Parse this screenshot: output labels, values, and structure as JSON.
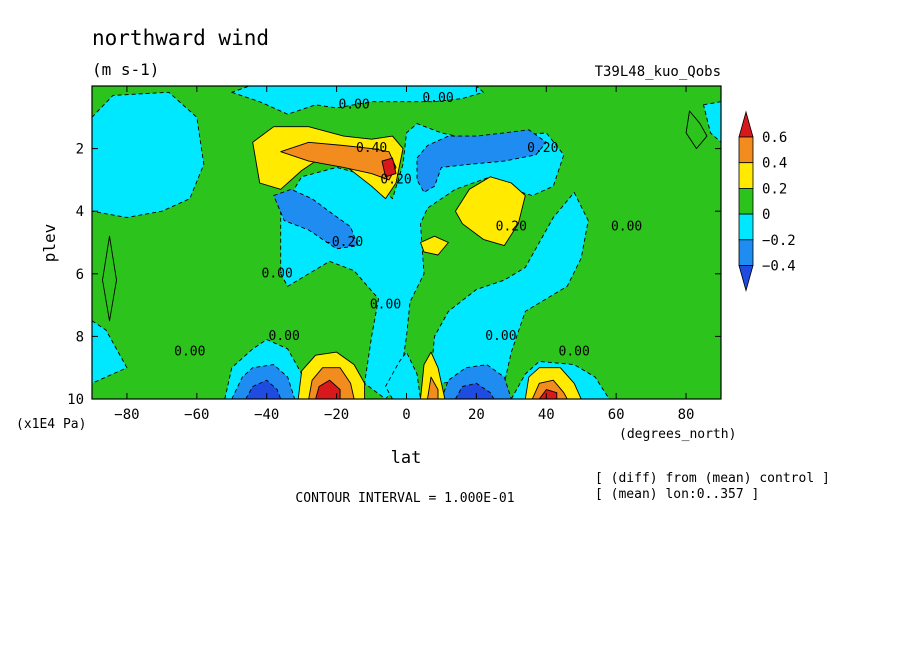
{
  "chart_data": {
    "type": "heatmap",
    "title": "northward wind",
    "units": "(m s-1)",
    "run_label": "T39L48_kuo_Qobs",
    "xlabel": "lat",
    "x_units": "(degrees_north)",
    "ylabel": "plev",
    "y_units": "(x1E4 Pa)",
    "xlim": [
      -90,
      90
    ],
    "ylim": [
      0,
      10
    ],
    "y_inverted": true,
    "x_ticks": [
      -80,
      -60,
      -40,
      -20,
      0,
      20,
      40,
      60,
      80
    ],
    "y_ticks": [
      2,
      4,
      6,
      8,
      10
    ],
    "contour_interval_text": "CONTOUR INTERVAL = 1.000E-01",
    "notes": [
      "[ (diff) from (mean) control ]",
      "[ (mean) lon:0..357 ]"
    ],
    "colorbar": {
      "tick_labels": [
        "0.6",
        "0.4",
        "0.2",
        "0",
        "-0.2",
        "-0.4"
      ],
      "colors": [
        "#d7191c",
        "#f28c1e",
        "#ffea00",
        "#2cc41c",
        "#00e8ff",
        "#1e8cf0",
        "#1e4be0"
      ]
    },
    "contour_labels": [
      {
        "text": "0.00",
        "lat": -15,
        "plev": 0.6
      },
      {
        "text": "0.00",
        "lat": 9,
        "plev": 0.4
      },
      {
        "text": "0.40",
        "lat": -10,
        "plev": 2.0
      },
      {
        "text": "0.20",
        "lat": -3,
        "plev": 3.0
      },
      {
        "text": "0.20",
        "lat": 39,
        "plev": 2.0
      },
      {
        "text": "-0.20",
        "lat": -18,
        "plev": 5.0
      },
      {
        "text": "0.20",
        "lat": 30,
        "plev": 4.5
      },
      {
        "text": "0.00",
        "lat": 63,
        "plev": 4.5
      },
      {
        "text": "0.00",
        "lat": -37,
        "plev": 6.0
      },
      {
        "text": "0.00",
        "lat": -6,
        "plev": 7.0
      },
      {
        "text": "0.00",
        "lat": -35,
        "plev": 8.0
      },
      {
        "text": "0.00",
        "lat": 27,
        "plev": 8.0
      },
      {
        "text": "0.00",
        "lat": -62,
        "plev": 8.5
      },
      {
        "text": "0.00",
        "lat": 48,
        "plev": 8.5
      }
    ],
    "regions": [
      {
        "name": "background",
        "level": 0,
        "points": [
          [
            -90,
            0
          ],
          [
            90,
            0
          ],
          [
            90,
            10
          ],
          [
            -90,
            10
          ]
        ]
      },
      {
        "name": "cyan-topleft",
        "level": -1,
        "points": [
          [
            -90,
            1
          ],
          [
            -84,
            0.3
          ],
          [
            -68,
            0.2
          ],
          [
            -60,
            1
          ],
          [
            -58,
            2.5
          ],
          [
            -62,
            3.6
          ],
          [
            -70,
            4
          ],
          [
            -80,
            4.2
          ],
          [
            -90,
            4
          ]
        ]
      },
      {
        "name": "cyan-top",
        "level": -1,
        "points": [
          [
            -50,
            0.2
          ],
          [
            -42,
            0.5
          ],
          [
            -34,
            0.9
          ],
          [
            -26,
            0.6
          ],
          [
            -20,
            0.7
          ],
          [
            -10,
            0.5
          ],
          [
            0,
            0.5
          ],
          [
            8,
            0.5
          ],
          [
            16,
            0.4
          ],
          [
            22,
            0.2
          ],
          [
            20,
            0
          ],
          [
            -45,
            0
          ]
        ]
      },
      {
        "name": "cyan-left-patch",
        "level": -1,
        "points": [
          [
            -90,
            7.5
          ],
          [
            -86,
            7.8
          ],
          [
            -80,
            9.0
          ],
          [
            -90,
            9.5
          ]
        ]
      },
      {
        "name": "green-left-lens",
        "level": 0,
        "points": [
          [
            -85,
            4.8
          ],
          [
            -83,
            6.2
          ],
          [
            -85,
            7.5
          ],
          [
            -87,
            6.2
          ]
        ]
      },
      {
        "name": "cyan-central",
        "level": -1,
        "points": [
          [
            -36,
            4
          ],
          [
            -30,
            2.9
          ],
          [
            -20,
            2.6
          ],
          [
            -10,
            2.9
          ],
          [
            -4,
            3.6
          ],
          [
            -1,
            2.5
          ],
          [
            0,
            1.5
          ],
          [
            3,
            1.2
          ],
          [
            10,
            1.5
          ],
          [
            18,
            1.7
          ],
          [
            30,
            1.6
          ],
          [
            40,
            1.5
          ],
          [
            45,
            2.2
          ],
          [
            42,
            3.2
          ],
          [
            36,
            3.5
          ],
          [
            30,
            3.3
          ],
          [
            24,
            2.9
          ],
          [
            14,
            3.3
          ],
          [
            6,
            3.9
          ],
          [
            4,
            4.4
          ],
          [
            5,
            6.0
          ],
          [
            1,
            6.9
          ],
          [
            0,
            8.0
          ],
          [
            -2,
            9.5
          ],
          [
            -6,
            10
          ],
          [
            -12,
            9.5
          ],
          [
            -10,
            8
          ],
          [
            -8,
            6.8
          ],
          [
            -15,
            5.9
          ],
          [
            -22,
            5.6
          ],
          [
            -28,
            6.0
          ],
          [
            -34,
            6.4
          ],
          [
            -36,
            6.0
          ]
        ]
      },
      {
        "name": "cyan-right-center",
        "level": -1,
        "points": [
          [
            48,
            3.4
          ],
          [
            52,
            4.3
          ],
          [
            50,
            5.5
          ],
          [
            46,
            6.4
          ],
          [
            40,
            6.8
          ],
          [
            34,
            7.2
          ],
          [
            30,
            8.5
          ],
          [
            28,
            9.5
          ],
          [
            24,
            9.8
          ],
          [
            20,
            9.6
          ],
          [
            16,
            9.4
          ],
          [
            10,
            9.5
          ],
          [
            7,
            9.2
          ],
          [
            8,
            8.0
          ],
          [
            12,
            7.2
          ],
          [
            20,
            6.5
          ],
          [
            28,
            6.2
          ],
          [
            34,
            5.8
          ],
          [
            38,
            5.0
          ],
          [
            42,
            4.2
          ]
        ]
      },
      {
        "name": "cyan-right-upper",
        "level": -1,
        "points": [
          [
            85,
            0.6
          ],
          [
            90,
            0.5
          ],
          [
            90,
            1.8
          ],
          [
            87,
            1.5
          ]
        ]
      },
      {
        "name": "green-lens-topright",
        "level": 0,
        "points": [
          [
            81,
            0.8
          ],
          [
            84,
            1.2
          ],
          [
            86,
            1.6
          ],
          [
            83,
            2.0
          ],
          [
            80,
            1.5
          ]
        ]
      },
      {
        "name": "cyan-bottom-left",
        "level": -1,
        "points": [
          [
            -52,
            10
          ],
          [
            -50,
            9.0
          ],
          [
            -44,
            8.4
          ],
          [
            -40,
            8.1
          ],
          [
            -34,
            8.4
          ],
          [
            -30,
            9.2
          ],
          [
            -28,
            10
          ]
        ]
      },
      {
        "name": "cyan-bottom-right",
        "level": -1,
        "points": [
          [
            30,
            10
          ],
          [
            34,
            9.2
          ],
          [
            38,
            8.8
          ],
          [
            48,
            8.9
          ],
          [
            54,
            9.3
          ],
          [
            58,
            10
          ]
        ]
      },
      {
        "name": "cyan-bottom-mid",
        "level": -1,
        "points": [
          [
            -4,
            10
          ],
          [
            -6,
            9.6
          ],
          [
            -2,
            8.8
          ],
          [
            0,
            8.5
          ],
          [
            3,
            9.2
          ],
          [
            4,
            10
          ]
        ]
      },
      {
        "name": "blue-upper-left",
        "level": -2,
        "points": [
          [
            -38,
            3.5
          ],
          [
            -33,
            3.3
          ],
          [
            -27,
            3.6
          ],
          [
            -21,
            4.1
          ],
          [
            -16,
            4.5
          ],
          [
            -14,
            5.1
          ],
          [
            -20,
            5.2
          ],
          [
            -28,
            4.6
          ],
          [
            -35,
            4.3
          ]
        ]
      },
      {
        "name": "blue-upper-center",
        "level": -2,
        "points": [
          [
            3,
            2.3
          ],
          [
            6,
            1.9
          ],
          [
            12,
            1.6
          ],
          [
            20,
            1.6
          ],
          [
            28,
            1.5
          ],
          [
            35,
            1.4
          ],
          [
            40,
            1.8
          ],
          [
            37,
            2.2
          ],
          [
            28,
            2.4
          ],
          [
            18,
            2.5
          ],
          [
            10,
            2.6
          ],
          [
            8,
            3.2
          ],
          [
            5,
            3.4
          ],
          [
            3,
            3.0
          ]
        ]
      },
      {
        "name": "blue-bottom-left",
        "level": -2,
        "points": [
          [
            -50,
            10
          ],
          [
            -47,
            9.3
          ],
          [
            -44,
            9.0
          ],
          [
            -38,
            8.9
          ],
          [
            -34,
            9.3
          ],
          [
            -32,
            10
          ]
        ]
      },
      {
        "name": "blue-bottom-right",
        "level": -2,
        "points": [
          [
            10,
            10
          ],
          [
            12,
            9.4
          ],
          [
            17,
            9.0
          ],
          [
            23,
            8.9
          ],
          [
            28,
            9.3
          ],
          [
            30,
            10
          ]
        ]
      },
      {
        "name": "deepblue-bottom-left",
        "level": -3,
        "points": [
          [
            -46,
            10
          ],
          [
            -44,
            9.6
          ],
          [
            -40,
            9.4
          ],
          [
            -37,
            9.7
          ],
          [
            -36,
            10
          ]
        ]
      },
      {
        "name": "deepblue-bottom-right",
        "level": -3,
        "points": [
          [
            14,
            10
          ],
          [
            16,
            9.6
          ],
          [
            20,
            9.5
          ],
          [
            24,
            9.8
          ],
          [
            25,
            10
          ]
        ]
      },
      {
        "name": "yellow-upper-left",
        "level": 1,
        "points": [
          [
            -44,
            1.8
          ],
          [
            -38,
            1.3
          ],
          [
            -28,
            1.3
          ],
          [
            -18,
            1.6
          ],
          [
            -10,
            1.7
          ],
          [
            -4,
            1.6
          ],
          [
            -1,
            2.0
          ],
          [
            -3,
            3.1
          ],
          [
            -6,
            3.6
          ],
          [
            -10,
            3.2
          ],
          [
            -18,
            2.5
          ],
          [
            -26,
            2.4
          ],
          [
            -30,
            2.7
          ],
          [
            -36,
            3.3
          ],
          [
            -42,
            3.1
          ]
        ]
      },
      {
        "name": "orange-upper-left",
        "level": 2,
        "points": [
          [
            -36,
            2.1
          ],
          [
            -28,
            1.8
          ],
          [
            -18,
            1.9
          ],
          [
            -10,
            2.0
          ],
          [
            -5,
            2.1
          ],
          [
            -3,
            2.6
          ],
          [
            -5,
            3.0
          ],
          [
            -10,
            2.8
          ],
          [
            -18,
            2.6
          ],
          [
            -28,
            2.4
          ]
        ]
      },
      {
        "name": "red-upper-left",
        "level": 3,
        "points": [
          [
            -7,
            2.4
          ],
          [
            -4,
            2.3
          ],
          [
            -3,
            2.8
          ],
          [
            -6,
            2.9
          ]
        ]
      },
      {
        "name": "yellow-right",
        "level": 1,
        "points": [
          [
            14,
            4.0
          ],
          [
            18,
            3.3
          ],
          [
            24,
            2.9
          ],
          [
            30,
            3.1
          ],
          [
            34,
            3.5
          ],
          [
            32,
            4.4
          ],
          [
            28,
            5.1
          ],
          [
            22,
            4.9
          ],
          [
            16,
            4.4
          ]
        ]
      },
      {
        "name": "yellow-small",
        "level": 1,
        "points": [
          [
            4,
            5.0
          ],
          [
            8,
            4.8
          ],
          [
            12,
            5.0
          ],
          [
            9,
            5.4
          ],
          [
            5,
            5.3
          ]
        ]
      },
      {
        "name": "yellow-bottom-left",
        "level": 1,
        "points": [
          [
            -31,
            10
          ],
          [
            -30,
            9.1
          ],
          [
            -26,
            8.6
          ],
          [
            -20,
            8.5
          ],
          [
            -15,
            8.9
          ],
          [
            -12,
            9.5
          ],
          [
            -12,
            10
          ]
        ]
      },
      {
        "name": "orange-bottom-left",
        "level": 2,
        "points": [
          [
            -28,
            10
          ],
          [
            -27,
            9.4
          ],
          [
            -24,
            9.0
          ],
          [
            -19,
            9.0
          ],
          [
            -16,
            9.5
          ],
          [
            -15,
            10
          ]
        ]
      },
      {
        "name": "red-bottom-left",
        "level": 3,
        "points": [
          [
            -26,
            10
          ],
          [
            -25,
            9.6
          ],
          [
            -22,
            9.4
          ],
          [
            -19,
            9.7
          ],
          [
            -19,
            10
          ]
        ]
      },
      {
        "name": "yellow-bottom-center",
        "level": 1,
        "points": [
          [
            4,
            10
          ],
          [
            5,
            8.9
          ],
          [
            7,
            8.5
          ],
          [
            9,
            9.0
          ],
          [
            11,
            10
          ]
        ]
      },
      {
        "name": "orange-bottom-center",
        "level": 2,
        "points": [
          [
            6,
            10
          ],
          [
            7,
            9.3
          ],
          [
            9,
            9.7
          ],
          [
            9,
            10
          ]
        ]
      },
      {
        "name": "yellow-bottom-right",
        "level": 1,
        "points": [
          [
            34,
            10
          ],
          [
            35,
            9.3
          ],
          [
            38,
            9.0
          ],
          [
            44,
            9.0
          ],
          [
            48,
            9.5
          ],
          [
            50,
            10
          ]
        ]
      },
      {
        "name": "orange-bottom-right",
        "level": 2,
        "points": [
          [
            36,
            10
          ],
          [
            38,
            9.5
          ],
          [
            42,
            9.4
          ],
          [
            45,
            9.8
          ],
          [
            46,
            10
          ]
        ]
      },
      {
        "name": "red-bottom-right",
        "level": 3,
        "points": [
          [
            38,
            10
          ],
          [
            40,
            9.7
          ],
          [
            43,
            9.8
          ],
          [
            43,
            10
          ]
        ]
      }
    ]
  }
}
